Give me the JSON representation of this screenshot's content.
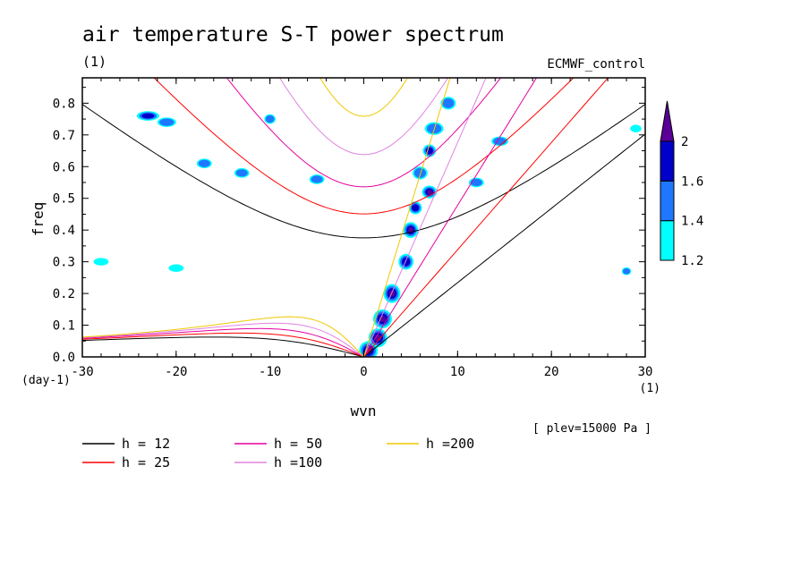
{
  "chart_data": {
    "type": "heatmap",
    "title": "air temperature S-T power spectrum",
    "unit_label": "(1)",
    "model_label": "ECMWF_control",
    "xlabel": "wvn",
    "ylabel": "freq",
    "y_unit": "(day-1)",
    "x_unit": "(1)",
    "level_note": "[ plev=15000 Pa ]",
    "xlim": [
      -30,
      30
    ],
    "ylim": [
      0,
      0.88
    ],
    "x_ticks": [
      "-30",
      "-20",
      "-10",
      "0",
      "10",
      "20",
      "30"
    ],
    "x_tick_values": [
      -30,
      -20,
      -10,
      0,
      10,
      20,
      30
    ],
    "y_ticks": [
      "0.0",
      "0.1",
      "0.2",
      "0.3",
      "0.4",
      "0.5",
      "0.6",
      "0.7",
      "0.8"
    ],
    "y_tick_values": [
      0,
      0.1,
      0.2,
      0.3,
      0.4,
      0.5,
      0.6,
      0.7,
      0.8
    ],
    "colorbar": {
      "labels": [
        "1.2",
        "1.4",
        "1.6",
        "2"
      ],
      "label_values": [
        1.2,
        1.4,
        1.6,
        2.0
      ],
      "colors": [
        "#00ffff",
        "#1e78ff",
        "#0000c8",
        "#5a0096"
      ]
    },
    "dispersion_curves": [
      {
        "label": "h = 12",
        "h": 12,
        "color": "#000000"
      },
      {
        "label": "h = 25",
        "h": 25,
        "color": "#ff0000"
      },
      {
        "label": "h = 50",
        "h": 50,
        "color": "#e600a0"
      },
      {
        "label": "h =100",
        "h": 100,
        "color": "#e082e0"
      },
      {
        "label": "h =200",
        "h": 200,
        "color": "#f0c800"
      }
    ],
    "spectral_peaks": [
      {
        "x": 0.5,
        "y": 0.02,
        "v": 2.0,
        "rx": 1.0,
        "ry": 0.03
      },
      {
        "x": 1.5,
        "y": 0.06,
        "v": 2.0,
        "rx": 1.0,
        "ry": 0.03
      },
      {
        "x": 2.0,
        "y": 0.12,
        "v": 2.0,
        "rx": 1.0,
        "ry": 0.03
      },
      {
        "x": 3.0,
        "y": 0.2,
        "v": 2.0,
        "rx": 0.9,
        "ry": 0.03
      },
      {
        "x": 4.5,
        "y": 0.3,
        "v": 1.8,
        "rx": 0.8,
        "ry": 0.025
      },
      {
        "x": 5.0,
        "y": 0.4,
        "v": 2.0,
        "rx": 0.8,
        "ry": 0.025
      },
      {
        "x": 5.5,
        "y": 0.47,
        "v": 1.8,
        "rx": 0.7,
        "ry": 0.02
      },
      {
        "x": 7.0,
        "y": 0.52,
        "v": 2.0,
        "rx": 0.8,
        "ry": 0.02
      },
      {
        "x": 7.0,
        "y": 0.65,
        "v": 1.8,
        "rx": 0.7,
        "ry": 0.02
      },
      {
        "x": 7.5,
        "y": 0.72,
        "v": 1.4,
        "rx": 1.0,
        "ry": 0.02
      },
      {
        "x": 6.0,
        "y": 0.58,
        "v": 1.4,
        "rx": 0.8,
        "ry": 0.02
      },
      {
        "x": 9.0,
        "y": 0.8,
        "v": 1.4,
        "rx": 0.8,
        "ry": 0.02
      },
      {
        "x": -23.0,
        "y": 0.76,
        "v": 1.6,
        "rx": 1.2,
        "ry": 0.015
      },
      {
        "x": -21.0,
        "y": 0.74,
        "v": 1.4,
        "rx": 1.0,
        "ry": 0.015
      },
      {
        "x": -17.0,
        "y": 0.61,
        "v": 1.4,
        "rx": 0.8,
        "ry": 0.015
      },
      {
        "x": -13.0,
        "y": 0.58,
        "v": 1.4,
        "rx": 0.8,
        "ry": 0.015
      },
      {
        "x": -10.0,
        "y": 0.75,
        "v": 1.4,
        "rx": 0.6,
        "ry": 0.015
      },
      {
        "x": -5.0,
        "y": 0.56,
        "v": 1.4,
        "rx": 0.8,
        "ry": 0.015
      },
      {
        "x": 14.5,
        "y": 0.68,
        "v": 1.4,
        "rx": 0.9,
        "ry": 0.015
      },
      {
        "x": 12.0,
        "y": 0.55,
        "v": 1.4,
        "rx": 0.8,
        "ry": 0.015
      },
      {
        "x": -28.0,
        "y": 0.3,
        "v": 1.2,
        "rx": 0.8,
        "ry": 0.012
      },
      {
        "x": -20.0,
        "y": 0.28,
        "v": 1.2,
        "rx": 0.8,
        "ry": 0.012
      },
      {
        "x": 28.0,
        "y": 0.27,
        "v": 1.4,
        "rx": 0.5,
        "ry": 0.012
      },
      {
        "x": 29.0,
        "y": 0.72,
        "v": 1.2,
        "rx": 0.6,
        "ry": 0.012
      }
    ]
  }
}
